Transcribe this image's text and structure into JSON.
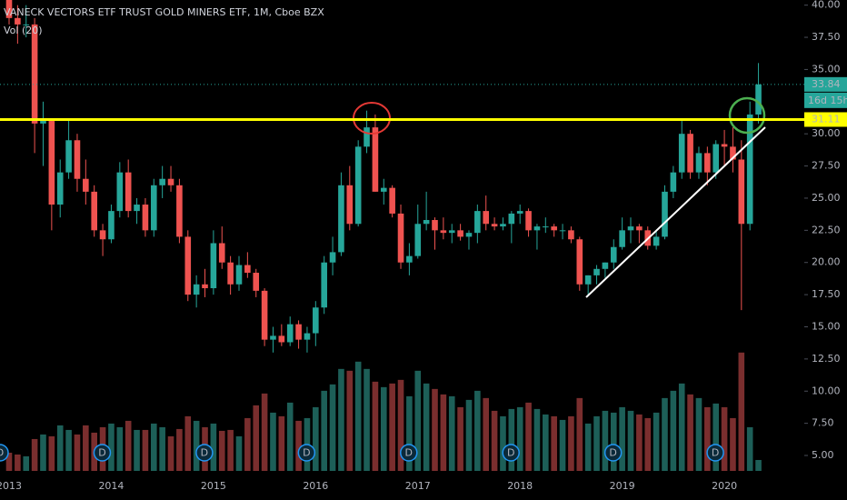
{
  "chart_data": {
    "type": "candlestick",
    "title": "VANECK VECTORS ETF TRUST GOLD MINERS ETF, 1M, Cboe BZX",
    "volume_label": "Vol (20)",
    "categories": [
      "2013",
      null,
      null,
      null,
      null,
      null,
      null,
      null,
      null,
      null,
      null,
      null,
      "2014",
      null,
      null,
      null,
      null,
      null,
      null,
      null,
      null,
      null,
      null,
      null,
      "2015",
      null,
      null,
      null,
      null,
      null,
      null,
      null,
      null,
      null,
      null,
      null,
      "2016",
      null,
      null,
      null,
      null,
      null,
      null,
      null,
      null,
      null,
      null,
      null,
      "2017",
      null,
      null,
      null,
      null,
      null,
      null,
      null,
      null,
      null,
      null,
      null,
      "2018",
      null,
      null,
      null,
      null,
      null,
      null,
      null,
      null,
      null,
      null,
      null,
      "2019",
      null,
      null,
      null,
      null,
      null,
      null,
      null,
      null,
      null,
      null,
      null,
      "2020",
      null,
      null,
      null,
      null
    ],
    "open": [
      41,
      39,
      38.5,
      38.5,
      30.8,
      31,
      24.5,
      27,
      29.5,
      26.5,
      25.5,
      22.5,
      21.8,
      24,
      27,
      24,
      24.5,
      22.5,
      26,
      26.5,
      26,
      22,
      17.5,
      18.3,
      18,
      21.5,
      20,
      18.3,
      19.8,
      19.2,
      17.8,
      14,
      14.3,
      13.8,
      15.2,
      14,
      14.5,
      16.5,
      20,
      20.8,
      26,
      23,
      29,
      30.5,
      25.5,
      25.8,
      23.8,
      20,
      20.5,
      23,
      23.3,
      22.5,
      22.3,
      22.5,
      22,
      22.3,
      24,
      23,
      22.8,
      23,
      23.8,
      24,
      22.5,
      22.8,
      22.8,
      22.5,
      22.5,
      21.8,
      18.3,
      19,
      19.5,
      20,
      21.2,
      22.5,
      22.8,
      22.5,
      21.3,
      22,
      25.5,
      27,
      30,
      27,
      28.5,
      27,
      29.2,
      29,
      28,
      23,
      31.5
    ],
    "high": [
      42,
      40,
      40,
      39,
      32.5,
      31,
      28,
      31,
      30,
      28,
      26,
      23,
      24.5,
      27.8,
      28,
      25,
      25,
      26.5,
      27.5,
      27.5,
      26.5,
      22.5,
      19,
      19.5,
      22.5,
      22.8,
      20.5,
      20.5,
      20.8,
      19.5,
      18,
      15,
      15.2,
      15.8,
      15.5,
      15,
      17,
      20.5,
      22,
      27,
      27.5,
      29.5,
      31.8,
      31.5,
      26.5,
      26,
      24.5,
      21.5,
      24.5,
      25.5,
      23.5,
      23.5,
      23,
      23,
      22.5,
      24.5,
      25.2,
      23.5,
      23.5,
      24,
      24.5,
      24.2,
      23,
      23.5,
      23,
      23,
      22.8,
      22,
      19,
      19.8,
      20,
      21.8,
      23.5,
      23.5,
      23,
      22.8,
      22.5,
      26,
      27.5,
      31,
      30.3,
      29,
      29,
      29.5,
      30.3,
      30.5,
      29.5,
      32.5,
      35.5
    ],
    "low": [
      38.5,
      37,
      37.5,
      28.5,
      27.5,
      22.5,
      23.5,
      26.5,
      25.5,
      24.5,
      22,
      20.5,
      21.5,
      23.5,
      23.5,
      23,
      22,
      22,
      25,
      25.5,
      21.5,
      17,
      16.5,
      17.3,
      17.5,
      19.5,
      17.5,
      17.8,
      18.8,
      17.3,
      13.5,
      13,
      13.5,
      13.5,
      13.3,
      13,
      13.5,
      16,
      19,
      20.5,
      22.5,
      22.8,
      28.5,
      25.5,
      24.5,
      23.5,
      19.5,
      19,
      20.3,
      22.5,
      21,
      21.8,
      21.5,
      21.7,
      21,
      21.5,
      22.5,
      22.5,
      22.5,
      21.5,
      23,
      22,
      21,
      22.3,
      22,
      21.8,
      21.5,
      17.8,
      17.5,
      18.3,
      18.8,
      19.5,
      21,
      21.5,
      21.5,
      21,
      21,
      21.8,
      25,
      26.5,
      26.5,
      26.5,
      26,
      26.5,
      27.5,
      27,
      16.3,
      22.5,
      30.8
    ],
    "close": [
      39,
      38.5,
      38.5,
      30.8,
      31,
      24.5,
      27,
      29.5,
      26.5,
      25.5,
      22.5,
      21.8,
      24,
      27,
      24,
      24.5,
      22.5,
      26,
      26.5,
      26,
      22,
      17.5,
      18.3,
      18,
      21.5,
      20,
      18.3,
      19.8,
      19.2,
      17.8,
      14,
      14.3,
      13.8,
      15.2,
      14,
      14.5,
      16.5,
      20,
      20.8,
      26,
      23,
      29,
      30.5,
      25.5,
      25.8,
      23.8,
      20,
      20.5,
      23,
      23.3,
      22.5,
      22.3,
      22.5,
      22,
      22.3,
      24,
      23,
      22.8,
      23,
      23.8,
      24,
      22.5,
      22.8,
      22.8,
      22.5,
      22.5,
      21.8,
      18.3,
      19,
      19.5,
      20,
      21.2,
      22.5,
      22.8,
      22.5,
      21.3,
      22,
      25.5,
      27,
      30,
      27,
      28.5,
      27,
      29.2,
      29,
      28,
      23,
      31.5,
      33.84
    ],
    "volume": [
      20,
      18,
      16,
      35,
      40,
      38,
      50,
      45,
      40,
      50,
      42,
      48,
      52,
      48,
      55,
      45,
      45,
      52,
      48,
      38,
      46,
      60,
      55,
      48,
      52,
      44,
      45,
      38,
      58,
      72,
      85,
      64,
      60,
      75,
      55,
      58,
      70,
      88,
      95,
      112,
      110,
      120,
      112,
      98,
      92,
      96,
      100,
      82,
      110,
      96,
      90,
      84,
      82,
      70,
      78,
      88,
      80,
      66,
      60,
      68,
      70,
      75,
      68,
      62,
      60,
      56,
      60,
      80,
      52,
      60,
      66,
      64,
      70,
      66,
      62,
      58,
      64,
      80,
      88,
      96,
      84,
      80,
      70,
      74,
      70,
      58,
      130,
      48,
      12
    ],
    "vlim": [
      0,
      135
    ],
    "up_color": "#26a69a",
    "down_color": "#ef5350",
    "volume_up_color": "#1d5f58",
    "volume_down_color": "#7a2e2e",
    "ylim": [
      3.8,
      40.4
    ],
    "yticks": [
      {
        "value": 5,
        "label": "5.00"
      },
      {
        "value": 7.5,
        "label": "7.50"
      },
      {
        "value": 10,
        "label": "10.00"
      },
      {
        "value": 12.5,
        "label": "12.50"
      },
      {
        "value": 15,
        "label": "15.00"
      },
      {
        "value": 17.5,
        "label": "17.50"
      },
      {
        "value": 20,
        "label": "20.00"
      },
      {
        "value": 22.5,
        "label": "22.50"
      },
      {
        "value": 25,
        "label": "25.00"
      },
      {
        "value": 27.5,
        "label": "27.50"
      },
      {
        "value": 30,
        "label": "30.00"
      },
      {
        "value": 32.5,
        "label": "32.50"
      },
      {
        "value": 35,
        "label": "35.00"
      },
      {
        "value": 37.5,
        "label": "37.50"
      },
      {
        "value": 40,
        "label": "40.00"
      }
    ],
    "last_price": 33.84,
    "countdown": "16d 15h",
    "horizontal_line": {
      "value": 31.11,
      "color": "#ffff00"
    },
    "dividend_marker": "D",
    "grid": false
  }
}
